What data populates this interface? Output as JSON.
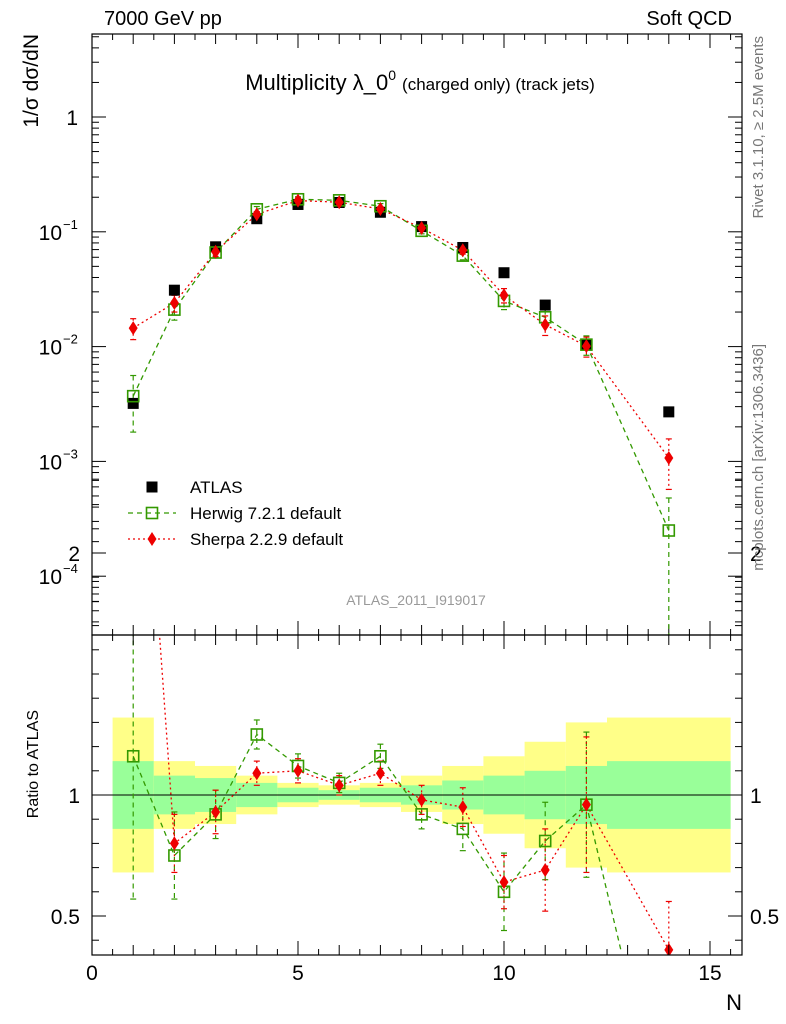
{
  "header": {
    "energy": "7000 GeV pp",
    "category": "Soft QCD"
  },
  "side": {
    "rivet": "Rivet 3.1.10, ≥ 2.5M events",
    "mcplots": "mcplots.cern.ch [arXiv:1306.3436]"
  },
  "chart_data": [
    {
      "type": "scatter",
      "panel": "main",
      "title": "Multiplicity λ_0",
      "title_sup": "0",
      "title_suffix": "(charged only) (track jets)",
      "ylabel": "1/σ dσ/dN",
      "yscale": "log",
      "ylim": [
        3e-05,
        5
      ],
      "xlim": [
        0,
        15.7
      ],
      "y_tick_labels": [
        "1",
        "10",
        "10",
        "10",
        "10"
      ],
      "y_tick_exponents": [
        "",
        "−1",
        "−2",
        "−3",
        "−4"
      ],
      "watermark": "ATLAS_2011_I919017",
      "legend_position": "bottom-left",
      "series": [
        {
          "name": "ATLAS",
          "style": "data",
          "color": "#000000",
          "marker": "square-filled",
          "x": [
            1,
            2,
            3,
            4,
            5,
            6,
            7,
            8,
            9,
            10,
            11,
            12,
            14
          ],
          "y": [
            0.0032,
            0.031,
            0.074,
            0.13,
            0.173,
            0.18,
            0.148,
            0.111,
            0.073,
            0.044,
            0.023,
            0.0105,
            0.0027
          ]
        },
        {
          "name": "Herwig 7.2.1 default",
          "style": "dashed",
          "color": "#339900",
          "marker": "square-open",
          "x": [
            1,
            2,
            3,
            4,
            5,
            6,
            7,
            8,
            9,
            10,
            11,
            12,
            14
          ],
          "y": [
            0.0037,
            0.021,
            0.066,
            0.157,
            0.192,
            0.188,
            0.167,
            0.102,
            0.062,
            0.025,
            0.018,
            0.0104,
            0.00025
          ],
          "yerr_low": [
            0.0019,
            0.004,
            0.006,
            0.009,
            0.01,
            0.01,
            0.009,
            0.006,
            0.005,
            0.004,
            0.003,
            0.002,
            0.00023
          ],
          "yerr_high": [
            0.0019,
            0.004,
            0.006,
            0.009,
            0.01,
            0.01,
            0.009,
            0.006,
            0.005,
            0.004,
            0.003,
            0.002,
            0.00023
          ]
        },
        {
          "name": "Sherpa 2.2.9 default",
          "style": "dotted",
          "color": "#ee0000",
          "marker": "diamond-filled",
          "x": [
            1,
            2,
            3,
            4,
            5,
            6,
            7,
            8,
            9,
            10,
            11,
            12,
            14
          ],
          "y": [
            0.0145,
            0.024,
            0.067,
            0.142,
            0.187,
            0.181,
            0.158,
            0.108,
            0.069,
            0.028,
            0.0155,
            0.0101,
            0.00107
          ],
          "yerr_low": [
            0.003,
            0.004,
            0.006,
            0.008,
            0.01,
            0.01,
            0.008,
            0.006,
            0.005,
            0.004,
            0.003,
            0.002,
            0.0005
          ],
          "yerr_high": [
            0.003,
            0.004,
            0.006,
            0.008,
            0.01,
            0.01,
            0.008,
            0.006,
            0.005,
            0.004,
            0.003,
            0.002,
            0.0005
          ]
        }
      ]
    },
    {
      "type": "scatter",
      "panel": "ratio",
      "ylabel": "Ratio to ATLAS",
      "xlabel": "N",
      "ylim": [
        0.35,
        2.35
      ],
      "xlim": [
        0,
        15.7
      ],
      "x_ticks": [
        0,
        5,
        10,
        15
      ],
      "y_ticks": [
        0.5,
        1,
        2
      ],
      "reference_line": 1,
      "bands": {
        "edges": [
          0.5,
          1.5,
          2.5,
          3.5,
          4.5,
          5.5,
          6.5,
          7.5,
          8.5,
          9.5,
          10.5,
          11.5,
          12.5,
          15.5
        ],
        "inner_low": [
          0.86,
          0.92,
          0.93,
          0.95,
          0.97,
          0.98,
          0.97,
          0.96,
          0.94,
          0.92,
          0.9,
          0.88,
          0.86
        ],
        "inner_high": [
          1.14,
          1.08,
          1.07,
          1.05,
          1.03,
          1.02,
          1.03,
          1.04,
          1.06,
          1.08,
          1.1,
          1.12,
          1.14
        ],
        "outer_low": [
          0.68,
          0.86,
          0.88,
          0.92,
          0.95,
          0.96,
          0.95,
          0.93,
          0.88,
          0.84,
          0.78,
          0.7,
          0.68
        ],
        "outer_high": [
          1.32,
          1.14,
          1.12,
          1.08,
          1.05,
          1.04,
          1.05,
          1.08,
          1.12,
          1.16,
          1.22,
          1.3,
          1.32
        ],
        "inner_color": "#99ff99",
        "outer_color": "#ffff88"
      },
      "series": [
        {
          "name": "Herwig 7.2.1 default",
          "style": "dashed",
          "color": "#339900",
          "marker": "square-open",
          "x": [
            1,
            2,
            3,
            4,
            5,
            6,
            7,
            8,
            9,
            10,
            11,
            12,
            12.85
          ],
          "y": [
            1.16,
            0.75,
            0.92,
            1.25,
            1.12,
            1.05,
            1.16,
            0.92,
            0.86,
            0.6,
            0.81,
            0.96,
            0.35
          ],
          "yerr_low": [
            0.59,
            0.18,
            0.1,
            0.06,
            0.05,
            0.04,
            0.05,
            0.06,
            0.09,
            0.16,
            0.16,
            0.3,
            0
          ],
          "yerr_high": [
            0.59,
            0.18,
            0.1,
            0.06,
            0.05,
            0.04,
            0.05,
            0.06,
            0.09,
            0.16,
            0.16,
            0.3,
            0
          ]
        },
        {
          "name": "Sherpa 2.2.9 default",
          "style": "dotted",
          "color": "#ee0000",
          "marker": "diamond-filled",
          "x": [
            1.35,
            2,
            3,
            4,
            5,
            6,
            7,
            8,
            9,
            10,
            11,
            12,
            14
          ],
          "y": [
            2.35,
            0.8,
            0.93,
            1.09,
            1.1,
            1.04,
            1.09,
            0.98,
            0.95,
            0.64,
            0.69,
            0.96,
            0.36
          ],
          "yerr_low": [
            0,
            0.12,
            0.09,
            0.05,
            0.05,
            0.04,
            0.05,
            0.06,
            0.08,
            0.11,
            0.17,
            0.28,
            0.2
          ],
          "yerr_high": [
            0,
            0.12,
            0.09,
            0.05,
            0.05,
            0.04,
            0.05,
            0.06,
            0.08,
            0.11,
            0.17,
            0.28,
            0.2
          ]
        }
      ]
    }
  ]
}
